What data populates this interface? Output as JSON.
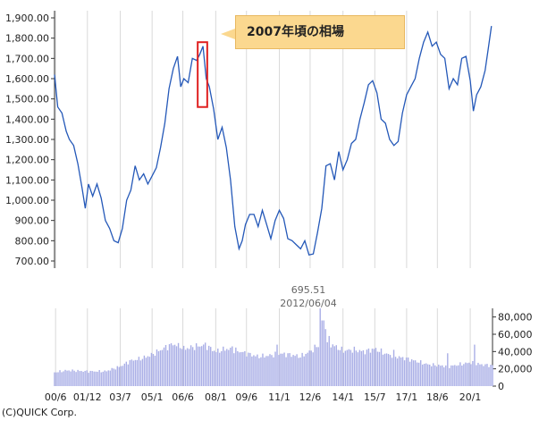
{
  "callout_label": "2007年頃の相場",
  "copyright": "(C)QUICK Corp.",
  "chart_data": [
    {
      "type": "line",
      "title": "",
      "y_ticks": [
        "1,900.00",
        "1,800.00",
        "1,700.00",
        "1,600.00",
        "1,500.00",
        "1,400.00",
        "1,300.00",
        "1,200.00",
        "1,100.00",
        "1,000.00",
        "900.00",
        "800.00",
        "700.00"
      ],
      "ylim": [
        700,
        1900
      ],
      "x_ticks": [
        "00/6",
        "01/12",
        "03/7",
        "05/1",
        "06/6",
        "08/1",
        "09/6",
        "11/1",
        "12/6",
        "14/1",
        "15/7",
        "17/1",
        "18/6",
        "20/1"
      ],
      "grid": true,
      "highlight": {
        "x_range": [
          2007.15,
          2007.6
        ],
        "y_range": [
          1460,
          1780
        ]
      },
      "series": [
        {
          "color": "#2458b8",
          "points": [
            [
              2000.4,
              1620
            ],
            [
              2000.55,
              1460
            ],
            [
              2000.75,
              1430
            ],
            [
              2000.95,
              1340
            ],
            [
              2001.1,
              1300
            ],
            [
              2001.3,
              1270
            ],
            [
              2001.5,
              1180
            ],
            [
              2001.7,
              1060
            ],
            [
              2001.85,
              960
            ],
            [
              2002.0,
              1080
            ],
            [
              2002.2,
              1020
            ],
            [
              2002.4,
              1080
            ],
            [
              2002.6,
              1010
            ],
            [
              2002.8,
              900
            ],
            [
              2003.0,
              860
            ],
            [
              2003.2,
              800
            ],
            [
              2003.4,
              790
            ],
            [
              2003.6,
              860
            ],
            [
              2003.8,
              1000
            ],
            [
              2004.0,
              1050
            ],
            [
              2004.2,
              1170
            ],
            [
              2004.4,
              1100
            ],
            [
              2004.6,
              1130
            ],
            [
              2004.8,
              1080
            ],
            [
              2005.0,
              1120
            ],
            [
              2005.2,
              1160
            ],
            [
              2005.4,
              1260
            ],
            [
              2005.6,
              1380
            ],
            [
              2005.8,
              1550
            ],
            [
              2006.0,
              1650
            ],
            [
              2006.2,
              1710
            ],
            [
              2006.35,
              1560
            ],
            [
              2006.5,
              1600
            ],
            [
              2006.7,
              1580
            ],
            [
              2006.9,
              1700
            ],
            [
              2007.1,
              1690
            ],
            [
              2007.25,
              1720
            ],
            [
              2007.4,
              1760
            ],
            [
              2007.55,
              1600
            ],
            [
              2007.7,
              1560
            ],
            [
              2007.9,
              1450
            ],
            [
              2008.1,
              1300
            ],
            [
              2008.3,
              1360
            ],
            [
              2008.5,
              1260
            ],
            [
              2008.7,
              1100
            ],
            [
              2008.9,
              870
            ],
            [
              2009.1,
              760
            ],
            [
              2009.25,
              800
            ],
            [
              2009.4,
              880
            ],
            [
              2009.6,
              930
            ],
            [
              2009.8,
              930
            ],
            [
              2010.0,
              870
            ],
            [
              2010.2,
              950
            ],
            [
              2010.4,
              880
            ],
            [
              2010.6,
              810
            ],
            [
              2010.8,
              900
            ],
            [
              2011.0,
              950
            ],
            [
              2011.2,
              910
            ],
            [
              2011.4,
              810
            ],
            [
              2011.6,
              800
            ],
            [
              2011.8,
              780
            ],
            [
              2012.0,
              760
            ],
            [
              2012.2,
              800
            ],
            [
              2012.4,
              730
            ],
            [
              2012.6,
              735
            ],
            [
              2012.8,
              840
            ],
            [
              2013.0,
              960
            ],
            [
              2013.2,
              1170
            ],
            [
              2013.4,
              1180
            ],
            [
              2013.6,
              1100
            ],
            [
              2013.8,
              1240
            ],
            [
              2014.0,
              1150
            ],
            [
              2014.2,
              1200
            ],
            [
              2014.4,
              1280
            ],
            [
              2014.6,
              1300
            ],
            [
              2014.8,
              1400
            ],
            [
              2015.0,
              1480
            ],
            [
              2015.2,
              1570
            ],
            [
              2015.4,
              1590
            ],
            [
              2015.6,
              1530
            ],
            [
              2015.8,
              1400
            ],
            [
              2016.0,
              1380
            ],
            [
              2016.2,
              1300
            ],
            [
              2016.4,
              1270
            ],
            [
              2016.6,
              1290
            ],
            [
              2016.8,
              1430
            ],
            [
              2017.0,
              1520
            ],
            [
              2017.2,
              1560
            ],
            [
              2017.4,
              1600
            ],
            [
              2017.6,
              1700
            ],
            [
              2017.8,
              1780
            ],
            [
              2018.0,
              1830
            ],
            [
              2018.2,
              1760
            ],
            [
              2018.4,
              1780
            ],
            [
              2018.6,
              1720
            ],
            [
              2018.8,
              1700
            ],
            [
              2019.0,
              1550
            ],
            [
              2019.2,
              1600
            ],
            [
              2019.4,
              1570
            ],
            [
              2019.6,
              1700
            ],
            [
              2019.8,
              1710
            ],
            [
              2020.0,
              1590
            ],
            [
              2020.15,
              1440
            ],
            [
              2020.3,
              1520
            ],
            [
              2020.5,
              1560
            ],
            [
              2020.7,
              1640
            ],
            [
              2020.85,
              1750
            ],
            [
              2021.0,
              1860
            ]
          ]
        }
      ]
    },
    {
      "type": "bar",
      "title": "",
      "y_ticks": [
        "80,000",
        "60,000",
        "40,000",
        "20,000",
        "0"
      ],
      "ylim": [
        0,
        90000
      ],
      "x_ticks": [
        "00/6",
        "01/12",
        "03/7",
        "05/1",
        "06/6",
        "08/1",
        "09/6",
        "11/1",
        "12/6",
        "14/1",
        "15/7",
        "17/1",
        "18/6",
        "20/1"
      ],
      "annotation": {
        "value": "695.51",
        "date": "2012/06/04"
      },
      "bar_color": "#a9aee6",
      "volume_profile": [
        [
          2000.4,
          14000
        ],
        [
          2001.0,
          16000
        ],
        [
          2002.0,
          15000
        ],
        [
          2002.8,
          15000
        ],
        [
          2003.5,
          20000
        ],
        [
          2004.0,
          26000
        ],
        [
          2004.5,
          28000
        ],
        [
          2005.0,
          32000
        ],
        [
          2005.5,
          38000
        ],
        [
          2006.0,
          43000
        ],
        [
          2006.5,
          38000
        ],
        [
          2007.0,
          40000
        ],
        [
          2007.5,
          42000
        ],
        [
          2008.0,
          35000
        ],
        [
          2008.5,
          38000
        ],
        [
          2009.0,
          36000
        ],
        [
          2009.5,
          33000
        ],
        [
          2010.0,
          30000
        ],
        [
          2010.5,
          31000
        ],
        [
          2011.0,
          33000
        ],
        [
          2011.5,
          32000
        ],
        [
          2012.0,
          30000
        ],
        [
          2012.5,
          36000
        ],
        [
          2013.0,
          44000
        ],
        [
          2013.5,
          42000
        ],
        [
          2014.0,
          36000
        ],
        [
          2014.5,
          37000
        ],
        [
          2015.0,
          35000
        ],
        [
          2015.5,
          38000
        ],
        [
          2016.0,
          33000
        ],
        [
          2016.5,
          30000
        ],
        [
          2017.0,
          28000
        ],
        [
          2017.5,
          25000
        ],
        [
          2018.0,
          22000
        ],
        [
          2018.5,
          21000
        ],
        [
          2019.0,
          20000
        ],
        [
          2019.5,
          22000
        ],
        [
          2020.0,
          24000
        ],
        [
          2020.5,
          22000
        ],
        [
          2021.0,
          21000
        ]
      ],
      "volume_spikes": [
        [
          2005.9,
          48000
        ],
        [
          2006.3,
          44000
        ],
        [
          2008.8,
          46000
        ],
        [
          2010.9,
          48000
        ],
        [
          2012.95,
          95000
        ],
        [
          2013.05,
          76000
        ],
        [
          2013.15,
          66000
        ],
        [
          2013.35,
          58000
        ],
        [
          2016.4,
          42000
        ],
        [
          2018.9,
          38000
        ],
        [
          2020.2,
          48000
        ]
      ]
    }
  ]
}
